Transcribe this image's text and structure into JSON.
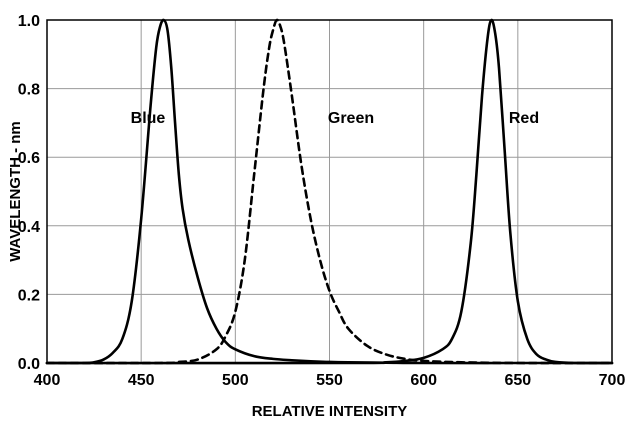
{
  "chart_data": {
    "type": "line",
    "title": "",
    "xlabel": "RELATIVE INTENSITY",
    "ylabel": "WAVELENGTH - nm",
    "xlim": [
      400,
      700
    ],
    "ylim": [
      0,
      1.0
    ],
    "x_ticks": [
      "400",
      "450",
      "500",
      "550",
      "600",
      "650",
      "700"
    ],
    "y_ticks": [
      "0.0",
      "0.2",
      "0.4",
      "0.6",
      "0.8",
      "1.0"
    ],
    "grid": true,
    "legend": "none",
    "series": [
      {
        "name": "Blue",
        "line_style": "solid",
        "color": "#000000",
        "x": [
          400,
          420,
          425,
          430,
          435,
          440,
          445,
          450,
          455,
          458,
          460,
          462,
          464,
          466,
          468,
          470,
          472,
          475,
          480,
          485,
          490,
          495,
          500,
          510,
          520,
          530,
          540,
          550,
          560,
          580,
          600,
          650,
          700
        ],
        "y": [
          0.0,
          0.0,
          0.002,
          0.01,
          0.03,
          0.07,
          0.18,
          0.42,
          0.75,
          0.92,
          0.98,
          1.0,
          0.97,
          0.86,
          0.7,
          0.55,
          0.45,
          0.36,
          0.25,
          0.16,
          0.1,
          0.06,
          0.04,
          0.02,
          0.012,
          0.008,
          0.005,
          0.003,
          0.002,
          0.001,
          0.0,
          0.0,
          0.0
        ]
      },
      {
        "name": "Green",
        "line_style": "dashed",
        "color": "#000000",
        "x": [
          400,
          460,
          470,
          480,
          490,
          495,
          500,
          505,
          510,
          515,
          518,
          520,
          522,
          524,
          526,
          530,
          535,
          540,
          545,
          550,
          555,
          560,
          570,
          580,
          590,
          600,
          620,
          650,
          700
        ],
        "y": [
          0.0,
          0.0,
          0.003,
          0.01,
          0.04,
          0.08,
          0.15,
          0.3,
          0.55,
          0.8,
          0.92,
          0.97,
          1.0,
          0.98,
          0.93,
          0.78,
          0.58,
          0.42,
          0.3,
          0.21,
          0.15,
          0.1,
          0.05,
          0.025,
          0.012,
          0.006,
          0.002,
          0.0,
          0.0
        ]
      },
      {
        "name": "Red",
        "line_style": "solid",
        "color": "#000000",
        "x": [
          400,
          560,
          580,
          590,
          600,
          610,
          615,
          620,
          625,
          628,
          631,
          634,
          636,
          638,
          640,
          643,
          646,
          650,
          655,
          660,
          665,
          670,
          680,
          700
        ],
        "y": [
          0.0,
          0.0,
          0.002,
          0.006,
          0.015,
          0.04,
          0.07,
          0.15,
          0.35,
          0.55,
          0.78,
          0.95,
          1.0,
          0.96,
          0.86,
          0.62,
          0.38,
          0.18,
          0.07,
          0.025,
          0.01,
          0.003,
          0.0,
          0.0
        ]
      }
    ],
    "annotations": [
      "Blue",
      "Green",
      "Red"
    ]
  }
}
